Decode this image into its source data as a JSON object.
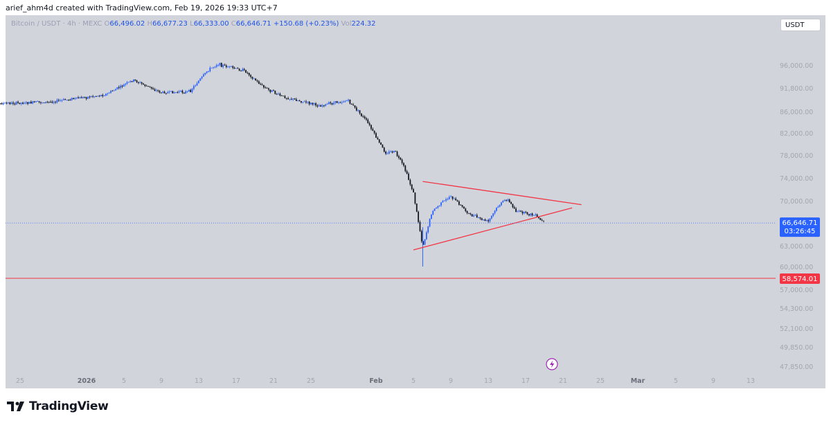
{
  "header": {
    "attribution": "arief_ahm4d created with TradingView.com, Feb 19, 2026 19:33 UTC+7"
  },
  "legend": {
    "symbol": "Bitcoin / USDT · 4h · MEXC",
    "open_label": "O",
    "open": "66,496.02",
    "high_label": "H",
    "high": "66,677.23",
    "low_label": "L",
    "low": "66,333.00",
    "close_label": "C",
    "close": "66,646.71",
    "change": "+150.68 (+0.23%)",
    "volume_label": "Vol",
    "volume": "224.32"
  },
  "currency_button": "USDT",
  "price_axis": {
    "ticks": [
      "96,000.00",
      "91,800.00",
      "86,000.00",
      "82,000.00",
      "78,000.00",
      "74,000.00",
      "70,000.00",
      "63,000.00",
      "60,000.00",
      "57,000.00",
      "54,300.00",
      "52,100.00",
      "49,850.00",
      "47,850.00"
    ],
    "current_price": "66,646.71",
    "countdown": "03:26:45",
    "level_price": "58,574.01"
  },
  "time_axis": {
    "labels": [
      "25",
      "2026",
      "5",
      "9",
      "13",
      "17",
      "21",
      "25",
      "Feb",
      "5",
      "9",
      "13",
      "17",
      "21",
      "25",
      "Mar",
      "5",
      "9",
      "13"
    ]
  },
  "footer": {
    "brand": "TradingView"
  },
  "colors": {
    "chart_bg": "#d2d4dc",
    "candle_up": "#2962ff",
    "candle_down": "#131722",
    "triangle": "#f23645",
    "support_line": "#f23645",
    "price_label_bg": "#2962ff",
    "level_label_bg": "#f23645"
  },
  "chart_data": {
    "type": "candlestick",
    "symbol": "Bitcoin / USDT · 4h · MEXC",
    "x_range": [
      "2025-12-22",
      "2026-03-16"
    ],
    "y_range": [
      47000,
      100000
    ],
    "close_series": [
      {
        "date": "2025-12-21",
        "close": 88000
      },
      {
        "date": "2025-12-28",
        "close": 88500
      },
      {
        "date": "2026-01-03",
        "close": 90300
      },
      {
        "date": "2026-01-06",
        "close": 93400
      },
      {
        "date": "2026-01-09",
        "close": 90800
      },
      {
        "date": "2026-01-12",
        "close": 91000
      },
      {
        "date": "2026-01-14",
        "close": 95200
      },
      {
        "date": "2026-01-15",
        "close": 96300
      },
      {
        "date": "2026-01-18",
        "close": 95000
      },
      {
        "date": "2026-01-20",
        "close": 92000
      },
      {
        "date": "2026-01-22",
        "close": 89800
      },
      {
        "date": "2026-01-26",
        "close": 87600
      },
      {
        "date": "2026-01-29",
        "close": 88900
      },
      {
        "date": "2026-01-31",
        "close": 84300
      },
      {
        "date": "2026-02-02",
        "close": 78500
      },
      {
        "date": "2026-02-03",
        "close": 78800
      },
      {
        "date": "2026-02-04",
        "close": 76000
      },
      {
        "date": "2026-02-05",
        "close": 71500
      },
      {
        "date": "2026-02-06",
        "close": 63000
      },
      {
        "date": "2026-02-07",
        "close": 68500
      },
      {
        "date": "2026-02-09",
        "close": 71000
      },
      {
        "date": "2026-02-11",
        "close": 68000
      },
      {
        "date": "2026-02-13",
        "close": 66800
      },
      {
        "date": "2026-02-14",
        "close": 69200
      },
      {
        "date": "2026-02-15",
        "close": 70500
      },
      {
        "date": "2026-02-16",
        "close": 68500
      },
      {
        "date": "2026-02-18",
        "close": 67800
      },
      {
        "date": "2026-02-19",
        "close": 66647
      }
    ],
    "triangle": {
      "upper_line": [
        {
          "date": "2026-02-06",
          "price": 73500
        },
        {
          "date": "2026-02-23",
          "price": 69500
        }
      ],
      "lower_line": [
        {
          "date": "2026-02-05",
          "price": 62500
        },
        {
          "date": "2026-02-22",
          "price": 69000
        }
      ]
    },
    "horizontal_levels": [
      {
        "price": 66646.71,
        "style": "dotted",
        "label": "66,646.71"
      },
      {
        "price": 58574.01,
        "style": "solid",
        "label": "58,574.01"
      }
    ]
  }
}
